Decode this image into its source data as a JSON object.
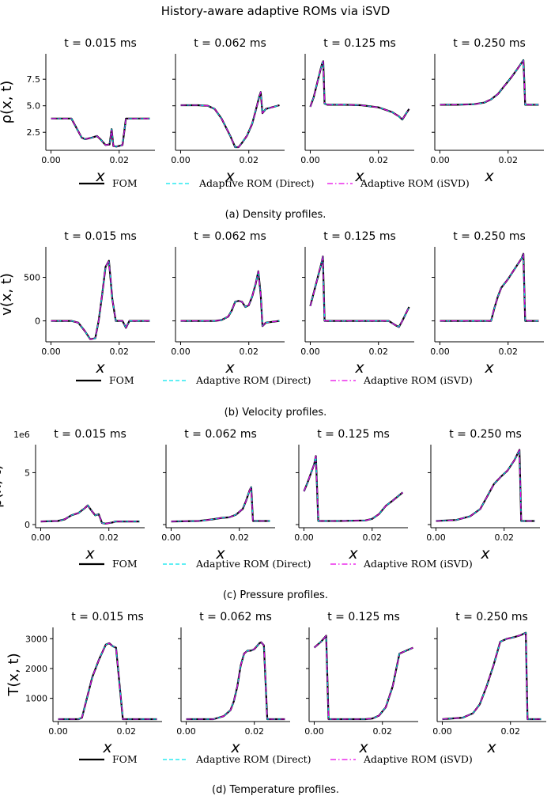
{
  "figure": {
    "title": "History-aware adaptive ROMs via iSVD",
    "legend": [
      {
        "label": "FOM",
        "color": "#000000",
        "dash": "solid"
      },
      {
        "label": "Adaptive ROM (Direct)",
        "color": "#00e5ee",
        "dash": "dashed"
      },
      {
        "label": "Adaptive ROM (iSVD)",
        "color": "#e600e6",
        "dash": "dashdot"
      }
    ],
    "captions": [
      "(a) Density profiles.",
      "(b) Velocity profiles.",
      "(c) Pressure profiles.",
      "(d) Temperature profiles."
    ],
    "panel_titles": [
      "t = 0.015 ms",
      "t = 0.062 ms",
      "t = 0.125 ms",
      "t = 0.250 ms"
    ],
    "xlabel": "x"
  },
  "chart_data": [
    {
      "type": "line",
      "variable": "density",
      "ylabel": "ρ(x, t)",
      "ylim": [
        0.8,
        9.9
      ],
      "yticks": [
        2.5,
        5.0,
        7.5
      ],
      "ytick_labels": [
        "2.5",
        "5.0",
        "7.5"
      ],
      "xlim": [
        -0.0015,
        0.0305
      ],
      "xticks": [
        0.0,
        0.02
      ],
      "xtick_labels": [
        "0.00",
        "0.02"
      ],
      "multiplier": "",
      "panels": [
        {
          "title": "t = 0.015 ms",
          "x": [
            0,
            0.004,
            0.006,
            0.009,
            0.01,
            0.012,
            0.0135,
            0.0145,
            0.016,
            0.0172,
            0.0178,
            0.0183,
            0.0192,
            0.021,
            0.022,
            0.029
          ],
          "y": [
            3.8,
            3.8,
            3.8,
            2.0,
            1.85,
            2.0,
            2.15,
            1.85,
            1.3,
            1.35,
            2.8,
            1.2,
            1.15,
            1.3,
            3.8,
            3.8
          ]
        },
        {
          "title": "t = 0.062 ms",
          "x": [
            0,
            0.005,
            0.008,
            0.01,
            0.012,
            0.0145,
            0.016,
            0.017,
            0.018,
            0.0195,
            0.021,
            0.022,
            0.023,
            0.0235,
            0.024,
            0.025,
            0.029
          ],
          "y": [
            5.05,
            5.05,
            5.0,
            4.7,
            3.8,
            2.2,
            1.1,
            1.1,
            1.5,
            2.2,
            3.3,
            4.5,
            5.8,
            6.3,
            4.3,
            4.7,
            5.05
          ]
        },
        {
          "title": "t = 0.125 ms",
          "x": [
            0,
            0.001,
            0.002,
            0.003,
            0.0035,
            0.0038,
            0.0042,
            0.005,
            0.01,
            0.015,
            0.02,
            0.024,
            0.026,
            0.027,
            0.028,
            0.029
          ],
          "y": [
            4.9,
            5.8,
            7.1,
            8.4,
            9.0,
            9.2,
            5.2,
            5.1,
            5.1,
            5.05,
            4.85,
            4.4,
            4.0,
            3.7,
            4.2,
            4.7
          ]
        },
        {
          "title": "t = 0.250 ms",
          "x": [
            0,
            0.005,
            0.01,
            0.013,
            0.015,
            0.017,
            0.019,
            0.021,
            0.023,
            0.0245,
            0.0248,
            0.025,
            0.029
          ],
          "y": [
            5.1,
            5.1,
            5.15,
            5.3,
            5.6,
            6.1,
            6.9,
            7.7,
            8.6,
            9.3,
            7.0,
            5.1,
            5.1
          ]
        }
      ]
    },
    {
      "type": "line",
      "variable": "velocity",
      "ylabel": "v(x, t)",
      "ylim": [
        -240,
        850
      ],
      "yticks": [
        0,
        500
      ],
      "ytick_labels": [
        "0",
        "500"
      ],
      "xlim": [
        -0.0015,
        0.0305
      ],
      "xticks": [
        0.0,
        0.02
      ],
      "xtick_labels": [
        "0.00",
        "0.02"
      ],
      "multiplier": "",
      "panels": [
        {
          "title": "t = 0.015 ms",
          "x": [
            0,
            0.006,
            0.008,
            0.01,
            0.0115,
            0.013,
            0.014,
            0.015,
            0.016,
            0.017,
            0.018,
            0.019,
            0.02,
            0.021,
            0.0215,
            0.022,
            0.023,
            0.029
          ],
          "y": [
            0,
            0,
            -20,
            -120,
            -210,
            -200,
            0,
            300,
            620,
            690,
            250,
            0,
            0,
            0,
            -40,
            -80,
            0,
            0
          ]
        },
        {
          "title": "t = 0.062 ms",
          "x": [
            0,
            0.01,
            0.012,
            0.014,
            0.015,
            0.016,
            0.017,
            0.018,
            0.019,
            0.02,
            0.021,
            0.022,
            0.0228,
            0.0235,
            0.024,
            0.025,
            0.029
          ],
          "y": [
            0,
            0,
            10,
            50,
            120,
            220,
            230,
            220,
            160,
            180,
            280,
            420,
            570,
            300,
            -60,
            -20,
            0
          ]
        },
        {
          "title": "t = 0.125 ms",
          "x": [
            0,
            0.001,
            0.002,
            0.003,
            0.0035,
            0.0037,
            0.0042,
            0.01,
            0.02,
            0.023,
            0.025,
            0.026,
            0.027,
            0.028,
            0.029
          ],
          "y": [
            170,
            320,
            470,
            620,
            700,
            740,
            0,
            0,
            0,
            0,
            -50,
            -70,
            0,
            80,
            160
          ]
        },
        {
          "title": "t = 0.250 ms",
          "x": [
            0,
            0.005,
            0.01,
            0.015,
            0.016,
            0.017,
            0.018,
            0.02,
            0.022,
            0.024,
            0.0245,
            0.025,
            0.029
          ],
          "y": [
            0,
            0,
            0,
            0,
            150,
            280,
            380,
            480,
            600,
            720,
            770,
            0,
            0
          ]
        }
      ]
    },
    {
      "type": "line",
      "variable": "pressure",
      "ylabel": "p(x, t)",
      "ylim": [
        -0.3,
        7.7
      ],
      "yticks": [
        0,
        5
      ],
      "ytick_labels": [
        "0",
        "5"
      ],
      "xlim": [
        -0.0015,
        0.0305
      ],
      "xticks": [
        0.0,
        0.02
      ],
      "xtick_labels": [
        "0.00",
        "0.02"
      ],
      "multiplier": "1e6",
      "panels": [
        {
          "title": "t = 0.015 ms",
          "x": [
            0,
            0.005,
            0.007,
            0.009,
            0.011,
            0.013,
            0.0138,
            0.015,
            0.016,
            0.017,
            0.0175,
            0.018,
            0.019,
            0.021,
            0.022,
            0.029
          ],
          "y": [
            0.3,
            0.35,
            0.5,
            0.9,
            1.1,
            1.6,
            1.85,
            1.3,
            0.9,
            1.0,
            0.6,
            0.15,
            0.1,
            0.2,
            0.3,
            0.3
          ]
        },
        {
          "title": "t = 0.062 ms",
          "x": [
            0,
            0.008,
            0.012,
            0.015,
            0.017,
            0.019,
            0.021,
            0.022,
            0.023,
            0.0235,
            0.024,
            0.029
          ],
          "y": [
            0.3,
            0.35,
            0.5,
            0.65,
            0.7,
            0.95,
            1.5,
            2.3,
            3.3,
            3.6,
            0.35,
            0.35
          ]
        },
        {
          "title": "t = 0.125 ms",
          "x": [
            0,
            0.001,
            0.002,
            0.003,
            0.0035,
            0.0042,
            0.01,
            0.018,
            0.02,
            0.022,
            0.024,
            0.026,
            0.029
          ],
          "y": [
            3.2,
            4.0,
            4.9,
            5.8,
            6.6,
            0.35,
            0.35,
            0.4,
            0.55,
            1.0,
            1.8,
            2.3,
            3.1
          ]
        },
        {
          "title": "t = 0.250 ms",
          "x": [
            0,
            0.006,
            0.01,
            0.013,
            0.015,
            0.017,
            0.019,
            0.021,
            0.023,
            0.0245,
            0.025,
            0.029
          ],
          "y": [
            0.35,
            0.45,
            0.8,
            1.5,
            2.7,
            3.9,
            4.6,
            5.2,
            6.2,
            7.2,
            0.35,
            0.35
          ]
        }
      ]
    },
    {
      "type": "line",
      "variable": "temperature",
      "ylabel": "T(x, t)",
      "ylim": [
        220,
        3380
      ],
      "yticks": [
        1000,
        2000,
        3000
      ],
      "ytick_labels": [
        "1000",
        "2000",
        "3000"
      ],
      "xlim": [
        -0.0015,
        0.0305
      ],
      "xticks": [
        0.0,
        0.02
      ],
      "xtick_labels": [
        "0.00",
        "0.02"
      ],
      "multiplier": "",
      "panels": [
        {
          "title": "t = 0.015 ms",
          "x": [
            0,
            0.006,
            0.007,
            0.008,
            0.01,
            0.012,
            0.014,
            0.015,
            0.016,
            0.017,
            0.018,
            0.019,
            0.022,
            0.029
          ],
          "y": [
            300,
            300,
            350,
            800,
            1700,
            2300,
            2800,
            2850,
            2750,
            2700,
            1500,
            300,
            300,
            300
          ]
        },
        {
          "title": "t = 0.062 ms",
          "x": [
            0,
            0.008,
            0.011,
            0.013,
            0.014,
            0.015,
            0.016,
            0.017,
            0.018,
            0.019,
            0.02,
            0.0215,
            0.022,
            0.0228,
            0.0238,
            0.024,
            0.029
          ],
          "y": [
            300,
            300,
            400,
            600,
            900,
            1400,
            2100,
            2500,
            2600,
            2600,
            2650,
            2850,
            2880,
            2780,
            300,
            300,
            300
          ]
        },
        {
          "title": "t = 0.125 ms",
          "x": [
            0,
            0.002,
            0.0035,
            0.0042,
            0.006,
            0.01,
            0.015,
            0.017,
            0.019,
            0.021,
            0.023,
            0.025,
            0.027,
            0.029
          ],
          "y": [
            2700,
            2900,
            3100,
            300,
            300,
            300,
            300,
            320,
            420,
            700,
            1400,
            2500,
            2600,
            2700
          ]
        },
        {
          "title": "t = 0.250 ms",
          "x": [
            0,
            0.006,
            0.009,
            0.011,
            0.013,
            0.015,
            0.017,
            0.019,
            0.021,
            0.023,
            0.0245,
            0.025,
            0.029
          ],
          "y": [
            300,
            350,
            500,
            800,
            1400,
            2100,
            2900,
            3000,
            3050,
            3120,
            3200,
            300,
            300
          ]
        }
      ]
    }
  ]
}
